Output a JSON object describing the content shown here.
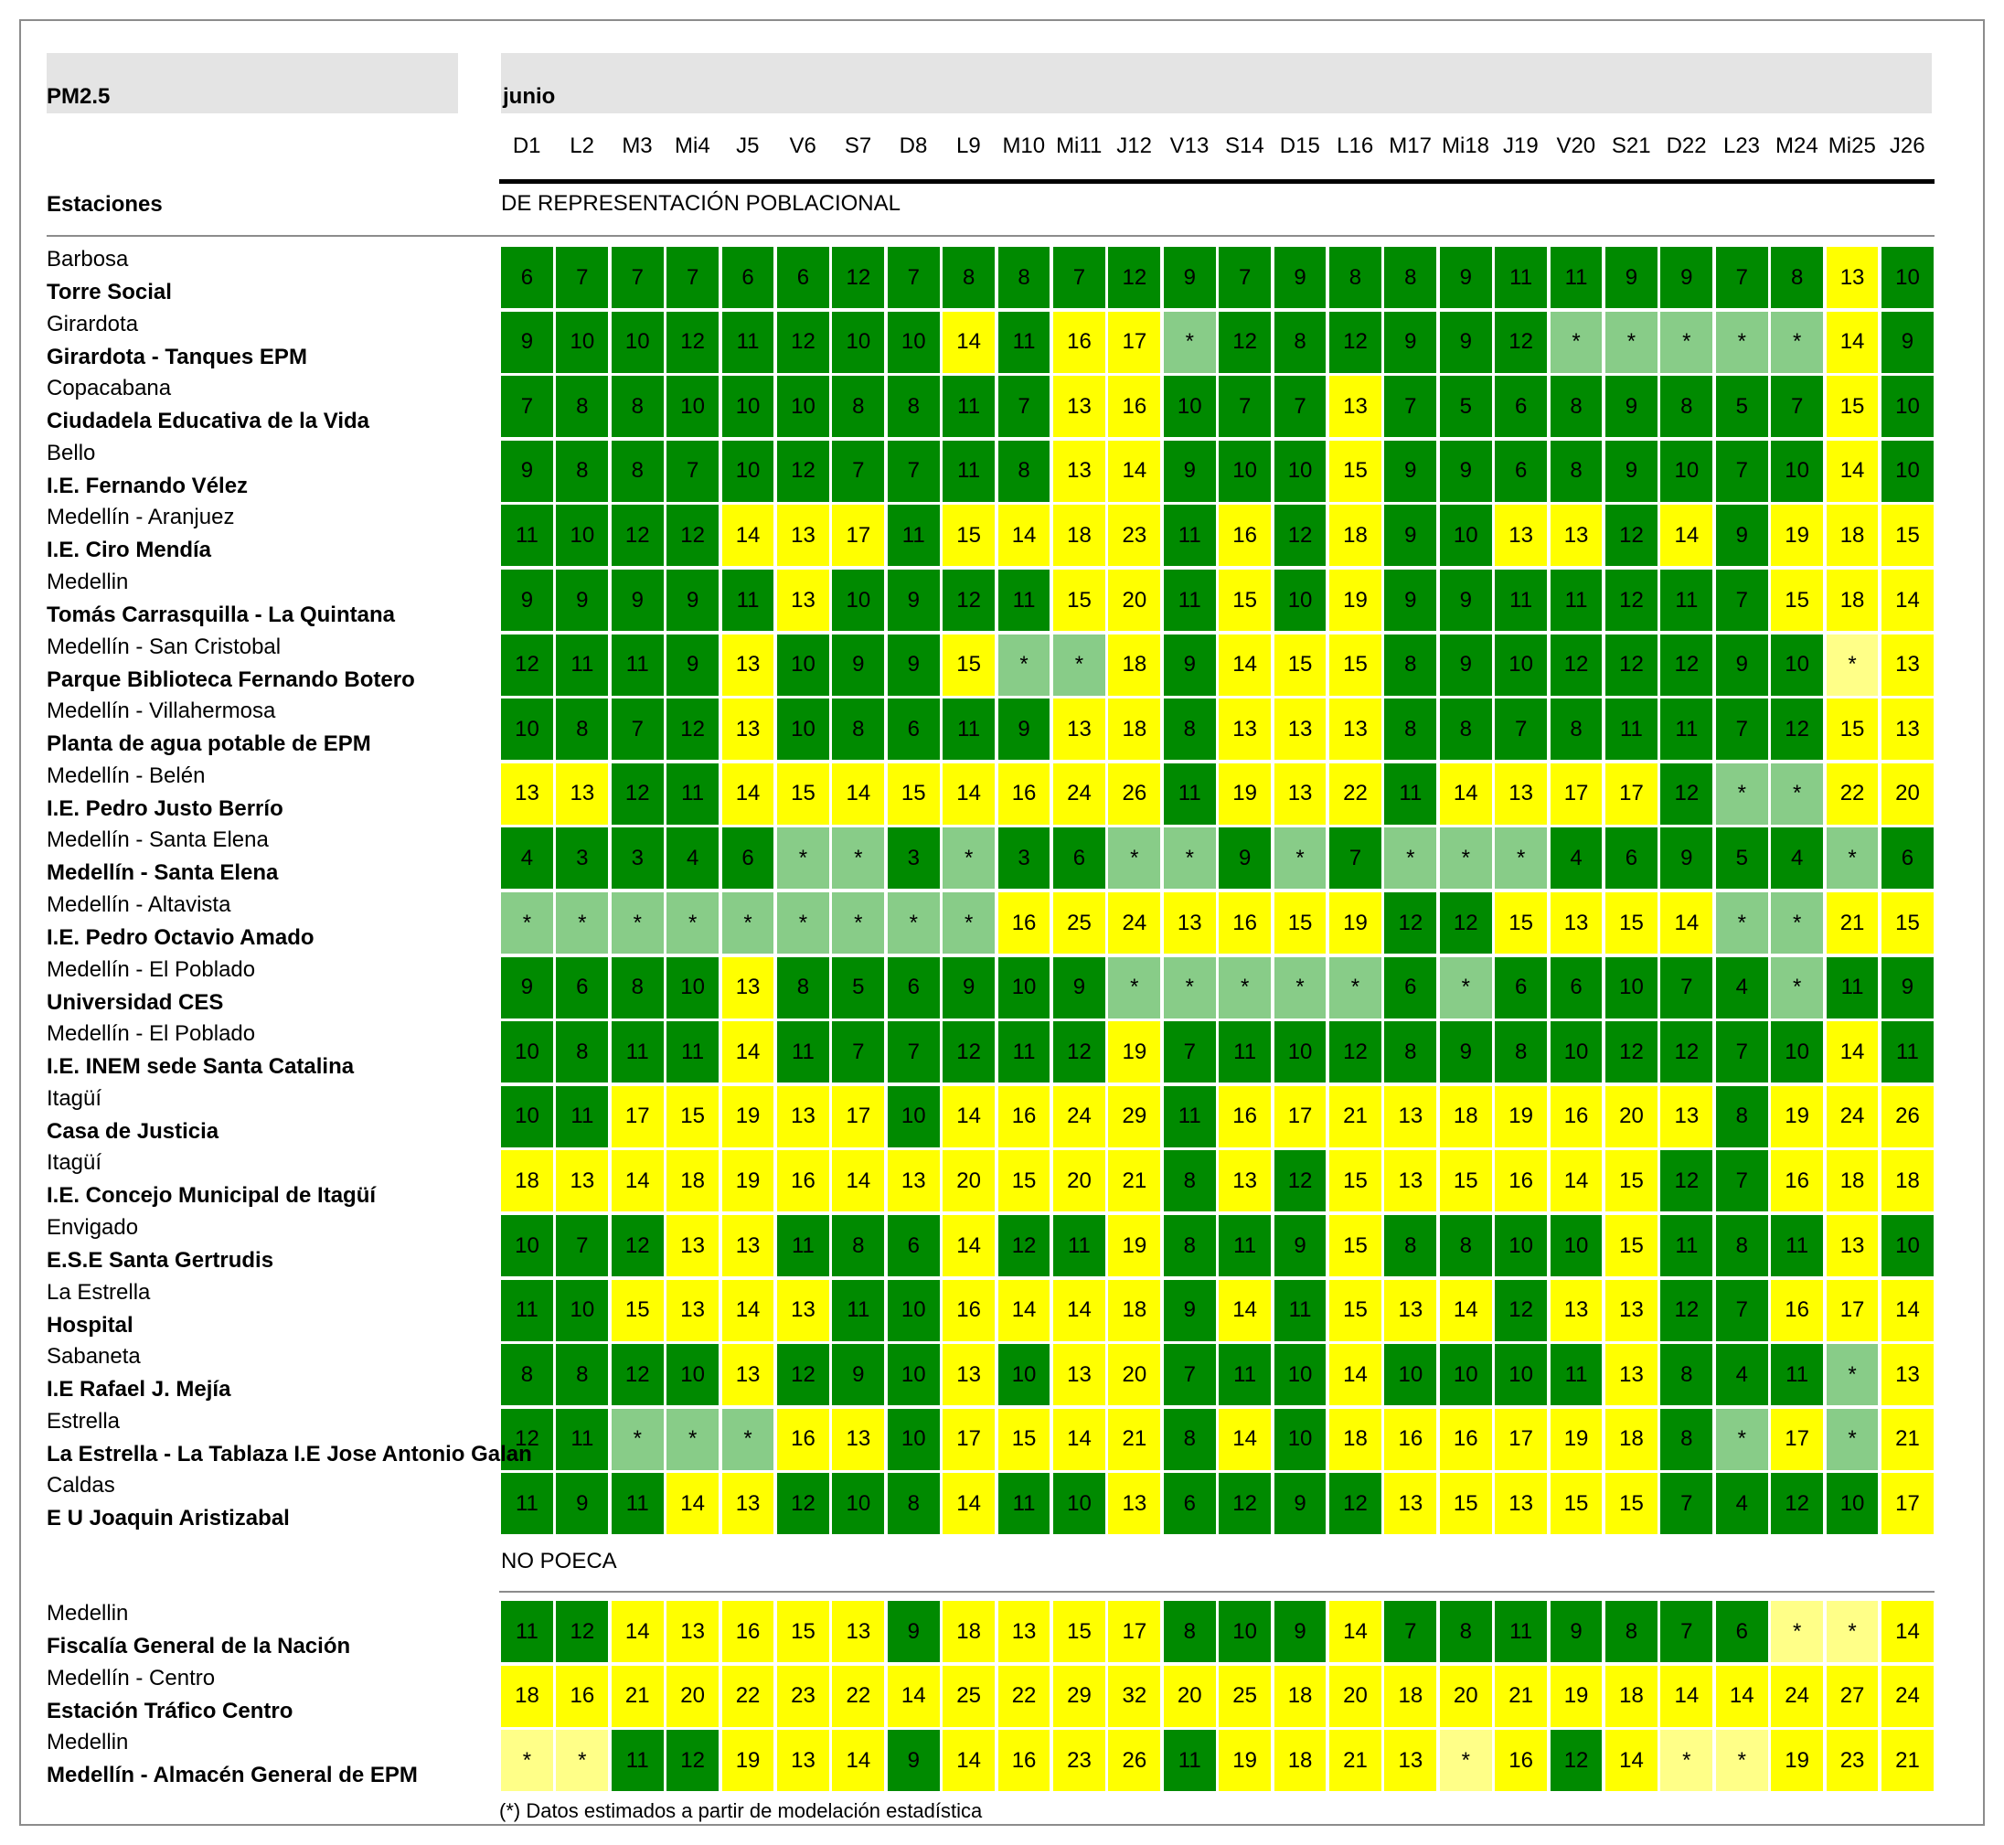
{
  "title": "PM2.5",
  "month": "junio",
  "stations_header": "Estaciones",
  "days": [
    "D1",
    "L2",
    "M3",
    "Mi4",
    "J5",
    "V6",
    "S7",
    "D8",
    "L9",
    "M10",
    "Mi11",
    "J12",
    "V13",
    "S14",
    "D15",
    "L16",
    "M17",
    "Mi18",
    "J19",
    "V20",
    "S21",
    "D22",
    "L23",
    "M24",
    "Mi25",
    "J26"
  ],
  "colors": {
    "good": "#008a00",
    "moderate": "#ffff00",
    "good_estimated": "#88cc88",
    "moderate_estimated": "#ffff88"
  },
  "sections": [
    {
      "label": "DE REPRESENTACIÓN POBLACIONAL",
      "stations": [
        {
          "municipality": "Barbosa",
          "name": "Torre Social",
          "values": [
            "6",
            "7",
            "7",
            "7",
            "6",
            "6",
            "12",
            "7",
            "8",
            "8",
            "7",
            "12",
            "9",
            "7",
            "9",
            "8",
            "8",
            "9",
            "11",
            "11",
            "9",
            "9",
            "7",
            "8",
            "13",
            "10"
          ]
        },
        {
          "municipality": "Girardota",
          "name": "Girardota - Tanques EPM",
          "values": [
            "9",
            "10",
            "10",
            "12",
            "11",
            "12",
            "10",
            "10",
            "14",
            "11",
            "16",
            "17",
            "*",
            "12",
            "8",
            "12",
            "9",
            "9",
            "12",
            "*",
            "*",
            "*",
            "*",
            "*",
            "14",
            "9"
          ]
        },
        {
          "municipality": "Copacabana",
          "name": "Ciudadela Educativa de la Vida",
          "values": [
            "7",
            "8",
            "8",
            "10",
            "10",
            "10",
            "8",
            "8",
            "11",
            "7",
            "13",
            "16",
            "10",
            "7",
            "7",
            "13",
            "7",
            "5",
            "6",
            "8",
            "9",
            "8",
            "5",
            "7",
            "15",
            "10"
          ]
        },
        {
          "municipality": "Bello",
          "name": "I.E. Fernando Vélez",
          "values": [
            "9",
            "8",
            "8",
            "7",
            "10",
            "12",
            "7",
            "7",
            "11",
            "8",
            "13",
            "14",
            "9",
            "10",
            "10",
            "15",
            "9",
            "9",
            "6",
            "8",
            "9",
            "10",
            "7",
            "10",
            "14",
            "10"
          ]
        },
        {
          "municipality": "Medellín - Aranjuez",
          "name": "I.E. Ciro Mendía",
          "values": [
            "11",
            "10",
            "12",
            "12",
            "14",
            "13",
            "17",
            "11",
            "15",
            "14",
            "18",
            "23",
            "11",
            "16",
            "12",
            "18",
            "9",
            "10",
            "13",
            "13",
            "12",
            "14",
            "9",
            "19",
            "18",
            "15"
          ]
        },
        {
          "municipality": "Medellin",
          "name": "Tomás Carrasquilla - La Quintana",
          "values": [
            "9",
            "9",
            "9",
            "9",
            "11",
            "13",
            "10",
            "9",
            "12",
            "11",
            "15",
            "20",
            "11",
            "15",
            "10",
            "19",
            "9",
            "9",
            "11",
            "11",
            "12",
            "11",
            "7",
            "15",
            "18",
            "14"
          ]
        },
        {
          "municipality": "Medellín - San Cristobal",
          "name": "Parque Biblioteca Fernando Botero",
          "values": [
            "12",
            "11",
            "11",
            "9",
            "13",
            "10",
            "9",
            "9",
            "15",
            "*",
            "*",
            "18",
            "9",
            "14",
            "15",
            "15",
            "8",
            "9",
            "10",
            "12",
            "12",
            "12",
            "9",
            "10",
            "*",
            "13"
          ]
        },
        {
          "municipality": "Medellín - Villahermosa",
          "name": "Planta de agua potable de EPM",
          "values": [
            "10",
            "8",
            "7",
            "12",
            "13",
            "10",
            "8",
            "6",
            "11",
            "9",
            "13",
            "18",
            "8",
            "13",
            "13",
            "13",
            "8",
            "8",
            "7",
            "8",
            "11",
            "11",
            "7",
            "12",
            "15",
            "13"
          ]
        },
        {
          "municipality": "Medellín - Belén",
          "name": "I.E. Pedro Justo Berrío",
          "values": [
            "13",
            "13",
            "12",
            "11",
            "14",
            "15",
            "14",
            "15",
            "14",
            "16",
            "24",
            "26",
            "11",
            "19",
            "13",
            "22",
            "11",
            "14",
            "13",
            "17",
            "17",
            "12",
            "*",
            "*",
            "22",
            "20"
          ]
        },
        {
          "municipality": "Medellín - Santa Elena",
          "name": "Medellín - Santa Elena",
          "values": [
            "4",
            "3",
            "3",
            "4",
            "6",
            "*",
            "*",
            "3",
            "*",
            "3",
            "6",
            "*",
            "*",
            "9",
            "*",
            "7",
            "*",
            "*",
            "*",
            "4",
            "6",
            "9",
            "5",
            "4",
            "*",
            "6"
          ]
        },
        {
          "municipality": "Medellín - Altavista",
          "name": "I.E. Pedro Octavio Amado",
          "values": [
            "*",
            "*",
            "*",
            "*",
            "*",
            "*",
            "*",
            "*",
            "*",
            "16",
            "25",
            "24",
            "13",
            "16",
            "15",
            "19",
            "12",
            "12",
            "15",
            "13",
            "15",
            "14",
            "*",
            "*",
            "21",
            "15"
          ]
        },
        {
          "municipality": "Medellín - El Poblado",
          "name": "Universidad CES",
          "values": [
            "9",
            "6",
            "8",
            "10",
            "13",
            "8",
            "5",
            "6",
            "9",
            "10",
            "9",
            "*",
            "*",
            "*",
            "*",
            "*",
            "6",
            "*",
            "6",
            "6",
            "10",
            "7",
            "4",
            "*",
            "11",
            "9"
          ]
        },
        {
          "municipality": "Medellín - El Poblado",
          "name": "I.E. INEM sede Santa Catalina",
          "values": [
            "10",
            "8",
            "11",
            "11",
            "14",
            "11",
            "7",
            "7",
            "12",
            "11",
            "12",
            "19",
            "7",
            "11",
            "10",
            "12",
            "8",
            "9",
            "8",
            "10",
            "12",
            "12",
            "7",
            "10",
            "14",
            "11"
          ]
        },
        {
          "municipality": "Itagüí",
          "name": "Casa de Justicia",
          "values": [
            "10",
            "11",
            "17",
            "15",
            "19",
            "13",
            "17",
            "10",
            "14",
            "16",
            "24",
            "29",
            "11",
            "16",
            "17",
            "21",
            "13",
            "18",
            "19",
            "16",
            "20",
            "13",
            "8",
            "19",
            "24",
            "26"
          ]
        },
        {
          "municipality": "Itagüí",
          "name": "I.E. Concejo Municipal de Itagüí",
          "values": [
            "18",
            "13",
            "14",
            "18",
            "19",
            "16",
            "14",
            "13",
            "20",
            "15",
            "20",
            "21",
            "8",
            "13",
            "12",
            "15",
            "13",
            "15",
            "16",
            "14",
            "15",
            "12",
            "7",
            "16",
            "18",
            "18"
          ]
        },
        {
          "municipality": "Envigado",
          "name": "E.S.E Santa Gertrudis",
          "values": [
            "10",
            "7",
            "12",
            "13",
            "13",
            "11",
            "8",
            "6",
            "14",
            "12",
            "11",
            "19",
            "8",
            "11",
            "9",
            "15",
            "8",
            "8",
            "10",
            "10",
            "15",
            "11",
            "8",
            "11",
            "13",
            "10"
          ]
        },
        {
          "municipality": "La Estrella",
          "name": "Hospital",
          "values": [
            "11",
            "10",
            "15",
            "13",
            "14",
            "13",
            "11",
            "10",
            "16",
            "14",
            "14",
            "18",
            "9",
            "14",
            "11",
            "15",
            "13",
            "14",
            "12",
            "13",
            "13",
            "12",
            "7",
            "16",
            "17",
            "14"
          ]
        },
        {
          "municipality": "Sabaneta",
          "name": "I.E Rafael J. Mejía",
          "values": [
            "8",
            "8",
            "12",
            "10",
            "13",
            "12",
            "9",
            "10",
            "13",
            "10",
            "13",
            "20",
            "7",
            "11",
            "10",
            "14",
            "10",
            "10",
            "10",
            "11",
            "13",
            "8",
            "4",
            "11",
            "*",
            "13"
          ]
        },
        {
          "municipality": "Estrella",
          "name": "La Estrella - La Tablaza I.E Jose Antonio Galan",
          "values": [
            "12",
            "11",
            "*",
            "*",
            "*",
            "16",
            "13",
            "10",
            "17",
            "15",
            "14",
            "21",
            "8",
            "14",
            "10",
            "18",
            "16",
            "16",
            "17",
            "19",
            "18",
            "8",
            "*",
            "17",
            "*",
            "21"
          ]
        },
        {
          "municipality": "Caldas",
          "name": "E U Joaquin Aristizabal",
          "values": [
            "11",
            "9",
            "11",
            "14",
            "13",
            "12",
            "10",
            "8",
            "14",
            "11",
            "10",
            "13",
            "6",
            "12",
            "9",
            "12",
            "13",
            "15",
            "13",
            "15",
            "15",
            "7",
            "4",
            "12",
            "10",
            "17"
          ]
        }
      ]
    },
    {
      "label": "NO POECA",
      "stations": [
        {
          "municipality": "Medellin",
          "name": "Fiscalía General de la Nación",
          "values": [
            "11",
            "12",
            "14",
            "13",
            "16",
            "15",
            "13",
            "9",
            "18",
            "13",
            "15",
            "17",
            "8",
            "10",
            "9",
            "14",
            "7",
            "8",
            "11",
            "9",
            "8",
            "7",
            "6",
            "*",
            "*",
            "14"
          ]
        },
        {
          "municipality": "Medellín - Centro",
          "name": "Estación Tráfico Centro",
          "values": [
            "18",
            "16",
            "21",
            "20",
            "22",
            "23",
            "22",
            "14",
            "25",
            "22",
            "29",
            "32",
            "20",
            "25",
            "18",
            "20",
            "18",
            "20",
            "21",
            "19",
            "18",
            "14",
            "14",
            "24",
            "27",
            "24"
          ]
        },
        {
          "municipality": "Medellin",
          "name": "Medellín - Almacén General de EPM",
          "values": [
            "*",
            "*",
            "11",
            "12",
            "19",
            "13",
            "14",
            "9",
            "14",
            "16",
            "23",
            "26",
            "11",
            "19",
            "18",
            "21",
            "13",
            "*",
            "16",
            "12",
            "14",
            "*",
            "*",
            "19",
            "23",
            "21"
          ]
        }
      ]
    }
  ],
  "estimated_map": {
    "1": [
      12,
      19,
      20,
      21,
      22,
      23
    ],
    "6": [
      9,
      10
    ],
    "8": [
      22,
      23
    ],
    "9": [
      5,
      6,
      8,
      11,
      12,
      14,
      16,
      17,
      18,
      24
    ],
    "10": [
      0,
      1,
      2,
      3,
      4,
      5,
      6,
      7,
      8,
      22,
      23
    ],
    "11": [
      11,
      12,
      13,
      14,
      15,
      17,
      23
    ],
    "17": [
      24
    ],
    "18": [
      2,
      3,
      4,
      22,
      24
    ],
    "21": [
      23,
      24
    ],
    "23": [
      0,
      1,
      17,
      22
    ]
  },
  "footnote": "(*) Datos estimados a partir de modelación estadística"
}
